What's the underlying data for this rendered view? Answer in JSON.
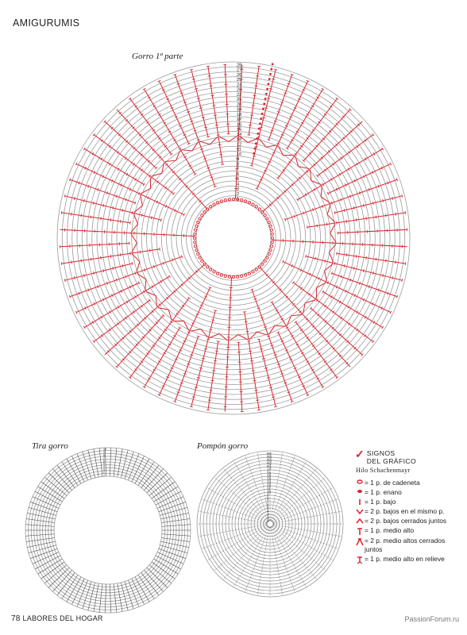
{
  "header": {
    "section": "AMIGURUMIS"
  },
  "charts": {
    "gorro": {
      "title": "Gorro 1ª parte",
      "rounds": [
        "1",
        "2",
        "3",
        "4",
        "5",
        "6",
        "7",
        "8",
        "9",
        "10",
        "11",
        "12",
        "13",
        "14",
        "15",
        "16",
        "17",
        "18",
        "19",
        "20",
        "21",
        "22",
        "23",
        "24",
        "25",
        "26",
        "27",
        "28"
      ]
    },
    "tira": {
      "title": "Tira gorro",
      "rounds": [
        "1",
        "2",
        "3",
        "4",
        "5",
        "6",
        "7",
        "8",
        "9",
        "10"
      ]
    },
    "pompon": {
      "title": "Pompón gorro",
      "rounds": [
        "1",
        "2",
        "3",
        "4",
        "5",
        "6",
        "7",
        "8",
        "9",
        "10",
        "11",
        "12",
        "13",
        "14",
        "15",
        "16",
        "17",
        "R1",
        "R2",
        "R3",
        "R4",
        "R5"
      ]
    }
  },
  "legend": {
    "title_line1": "SIGNOS",
    "title_line2": "DEL GRÁFICO",
    "yarn": "Hilo Schachenmayr",
    "items": [
      {
        "icon": "chain-stitch-icon",
        "text": "= 1 p. de cadeneta"
      },
      {
        "icon": "slip-stitch-icon",
        "text": "= 1 p. enano"
      },
      {
        "icon": "single-crochet-icon",
        "text": "= 1 p. bajo"
      },
      {
        "icon": "increase-icon",
        "text": "= 2 p. bajos en el mismo p."
      },
      {
        "icon": "decrease-icon",
        "text": "= 2 p. bajos cerrados juntos"
      },
      {
        "icon": "half-double-crochet-icon",
        "text": "= 1 p. medio alto"
      },
      {
        "icon": "hdc-decrease-icon",
        "text": "= 2 p. medio altos cerrados juntos"
      },
      {
        "icon": "hdc-relief-icon",
        "text": "= 1 p. medio alto en relieve"
      }
    ],
    "colors": {
      "accent": "#d9232d",
      "line": "#9a9a9a"
    }
  },
  "footer": {
    "page": "78",
    "magazine": "LABORES DEL HOGAR",
    "watermark": "PassionForum.ru"
  }
}
